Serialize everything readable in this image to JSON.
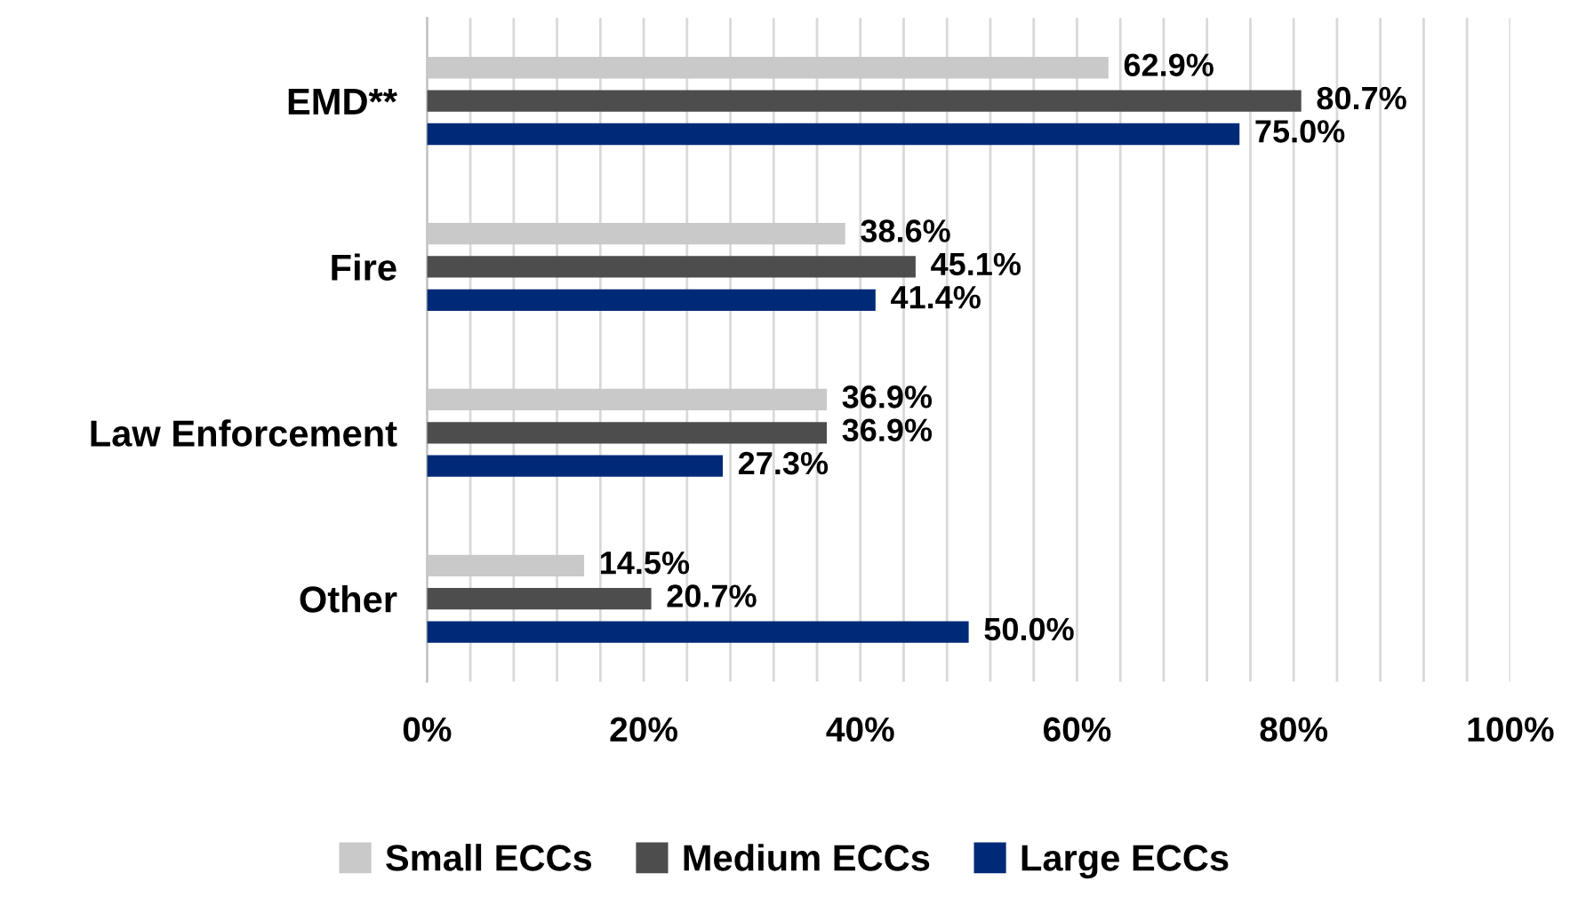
{
  "chart_data": {
    "type": "bar",
    "orientation": "horizontal",
    "categories": [
      "EMD**",
      "Fire",
      "Law Enforcement",
      "Other"
    ],
    "series": [
      {
        "name": "Small ECCs",
        "color": "#c9c9c9",
        "values": [
          62.9,
          38.6,
          36.9,
          14.5
        ],
        "value_labels": [
          "62.9%",
          "38.6%",
          "36.9%",
          "14.5%"
        ]
      },
      {
        "name": "Medium ECCs",
        "color": "#4d4d4d",
        "values": [
          80.7,
          45.1,
          36.9,
          20.7
        ],
        "value_labels": [
          "80.7%",
          "45.1%",
          "36.9%",
          "20.7%"
        ]
      },
      {
        "name": "Large ECCs",
        "color": "#002a78",
        "values": [
          75.0,
          41.4,
          27.3,
          50.0
        ],
        "value_labels": [
          "75.0%",
          "41.4%",
          "27.3%",
          "50.0%"
        ]
      }
    ],
    "xlim": [
      0,
      100
    ],
    "xticks": [
      {
        "value": 0,
        "label": "0%"
      },
      {
        "value": 4,
        "label": null
      },
      {
        "value": 8,
        "label": null
      },
      {
        "value": 12,
        "label": null
      },
      {
        "value": 16,
        "label": null
      },
      {
        "value": 20,
        "label": "20%"
      },
      {
        "value": 24,
        "label": null
      },
      {
        "value": 28,
        "label": null
      },
      {
        "value": 32,
        "label": null
      },
      {
        "value": 36,
        "label": null
      },
      {
        "value": 40,
        "label": "40%"
      },
      {
        "value": 44,
        "label": null
      },
      {
        "value": 48,
        "label": null
      },
      {
        "value": 52,
        "label": null
      },
      {
        "value": 56,
        "label": null
      },
      {
        "value": 60,
        "label": "60%"
      },
      {
        "value": 64,
        "label": null
      },
      {
        "value": 68,
        "label": null
      },
      {
        "value": 72,
        "label": null
      },
      {
        "value": 76,
        "label": null
      },
      {
        "value": 80,
        "label": "80%"
      },
      {
        "value": 84,
        "label": null
      },
      {
        "value": 88,
        "label": null
      },
      {
        "value": 92,
        "label": null
      },
      {
        "value": 96,
        "label": null
      },
      {
        "value": 100,
        "label": "100%"
      }
    ],
    "grid": "x",
    "legend": "bottom"
  }
}
